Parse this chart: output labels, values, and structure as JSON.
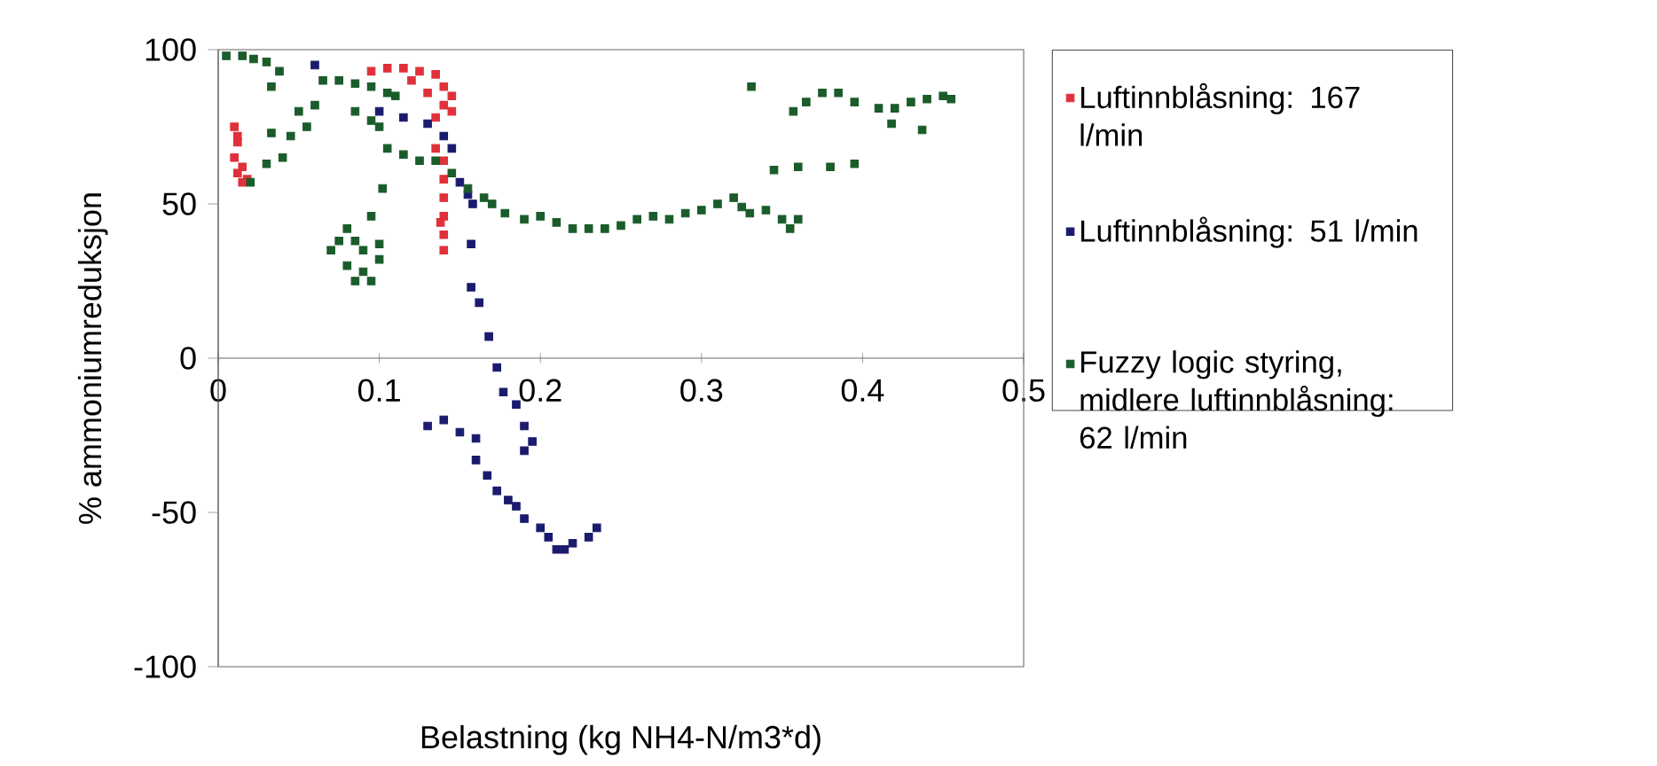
{
  "chart_data": {
    "type": "scatter",
    "xlabel": "Belastning (kg NH4-N/m3*d)",
    "ylabel": "% ammoniumreduksjon",
    "xlim": [
      0,
      0.5
    ],
    "ylim": [
      -100,
      100
    ],
    "xticks": [
      0,
      0.1,
      0.2,
      0.3,
      0.4,
      0.5
    ],
    "yticks": [
      -100,
      -50,
      0,
      50,
      100
    ],
    "grid": false,
    "legend": "right",
    "marker": "square",
    "series": [
      {
        "name": "Luftinnblåsning: 167 l/min",
        "color": "#e0303a",
        "x": [
          0.01,
          0.012,
          0.01,
          0.012,
          0.015,
          0.018,
          0.012,
          0.015,
          0.095,
          0.105,
          0.115,
          0.125,
          0.135,
          0.14,
          0.145,
          0.13,
          0.14,
          0.145,
          0.12,
          0.135,
          0.135,
          0.14,
          0.14,
          0.14,
          0.14,
          0.14,
          0.14,
          0.138
        ],
        "values": [
          75,
          70,
          65,
          60,
          57,
          58,
          72,
          62,
          93,
          94,
          94,
          93,
          92,
          88,
          85,
          86,
          82,
          80,
          90,
          78,
          68,
          64,
          58,
          52,
          46,
          40,
          35,
          44
        ]
      },
      {
        "name": "Luftinnblåsning: 51 l/min",
        "color": "#1a1a6e",
        "x": [
          0.06,
          0.1,
          0.115,
          0.13,
          0.14,
          0.145,
          0.15,
          0.155,
          0.158,
          0.157,
          0.157,
          0.162,
          0.168,
          0.173,
          0.177,
          0.185,
          0.19,
          0.195,
          0.19,
          0.13,
          0.14,
          0.15,
          0.16,
          0.16,
          0.167,
          0.173,
          0.18,
          0.185,
          0.19,
          0.2,
          0.205,
          0.21,
          0.215,
          0.22,
          0.23,
          0.235
        ],
        "values": [
          95,
          80,
          78,
          76,
          72,
          68,
          57,
          53,
          50,
          37,
          23,
          18,
          7,
          -3,
          -11,
          -15,
          -22,
          -27,
          -30,
          -22,
          -20,
          -24,
          -26,
          -33,
          -38,
          -43,
          -46,
          -48,
          -52,
          -55,
          -58,
          -62,
          -62,
          -60,
          -58,
          -55
        ]
      },
      {
        "name": "Fuzzy logic styring, midlere luftinnblåsning: 62 l/min",
        "color": "#1a5c2a",
        "x": [
          0.005,
          0.015,
          0.022,
          0.03,
          0.038,
          0.033,
          0.065,
          0.075,
          0.085,
          0.095,
          0.105,
          0.11,
          0.05,
          0.06,
          0.033,
          0.045,
          0.055,
          0.03,
          0.04,
          0.02,
          0.085,
          0.095,
          0.1,
          0.105,
          0.115,
          0.125,
          0.135,
          0.102,
          0.145,
          0.155,
          0.165,
          0.17,
          0.178,
          0.19,
          0.075,
          0.085,
          0.09,
          0.08,
          0.09,
          0.095,
          0.085,
          0.08,
          0.07,
          0.1,
          0.1,
          0.095,
          0.2,
          0.21,
          0.22,
          0.23,
          0.24,
          0.25,
          0.26,
          0.27,
          0.28,
          0.29,
          0.3,
          0.31,
          0.32,
          0.325,
          0.33,
          0.34,
          0.35,
          0.355,
          0.36,
          0.331,
          0.345,
          0.36,
          0.38,
          0.395,
          0.357,
          0.365,
          0.375,
          0.385,
          0.395,
          0.41,
          0.42,
          0.43,
          0.44,
          0.45,
          0.455,
          0.418,
          0.437
        ],
        "values": [
          98,
          98,
          97,
          96,
          93,
          88,
          90,
          90,
          89,
          88,
          86,
          85,
          80,
          82,
          73,
          72,
          75,
          63,
          65,
          57,
          80,
          77,
          75,
          68,
          66,
          64,
          64,
          55,
          60,
          55,
          52,
          50,
          47,
          45,
          38,
          38,
          35,
          30,
          28,
          25,
          25,
          42,
          35,
          37,
          32,
          46,
          46,
          44,
          42,
          42,
          42,
          43,
          45,
          46,
          45,
          47,
          48,
          50,
          52,
          49,
          47,
          48,
          45,
          42,
          45,
          88,
          61,
          62,
          62,
          63,
          80,
          83,
          86,
          86,
          83,
          81,
          81,
          83,
          84,
          85,
          84,
          76,
          74
        ]
      }
    ]
  }
}
